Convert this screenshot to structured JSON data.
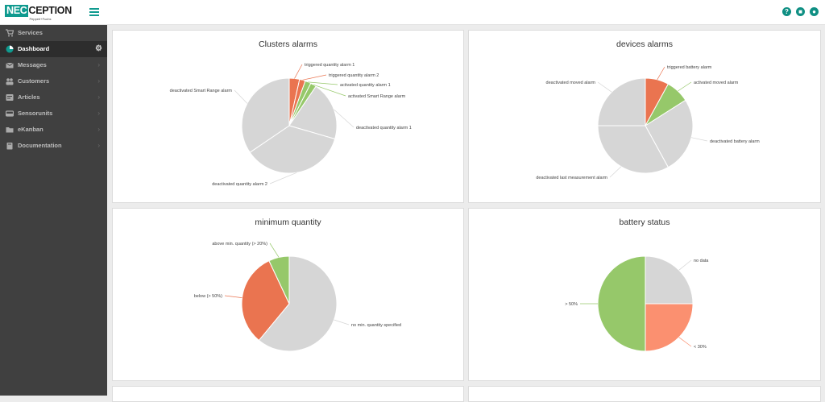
{
  "header": {
    "logo_prefix": "NEC",
    "logo_main": "CEPTION",
    "logo_sub": "Pepperl+Fuchs",
    "icons": [
      "help-icon",
      "chat-icon",
      "user-icon"
    ]
  },
  "sidebar": {
    "items": [
      {
        "label": "Services",
        "icon": "cart-icon"
      },
      {
        "label": "Dashboard",
        "icon": "dashboard-icon"
      },
      {
        "label": "Messages",
        "icon": "envelope-icon"
      },
      {
        "label": "Customers",
        "icon": "users-icon"
      },
      {
        "label": "Articles",
        "icon": "tag-icon"
      },
      {
        "label": "Sensorunits",
        "icon": "hdd-icon"
      },
      {
        "label": "eKanban",
        "icon": "folder-icon"
      },
      {
        "label": "Documentation",
        "icon": "book-icon"
      }
    ]
  },
  "colors": {
    "orange": "#ea7450",
    "green": "#96c86a",
    "grey": "#d6d6d6",
    "salmon": "#fb9070",
    "teal": "#0f9a8f"
  },
  "panels": {
    "clusters_alarms": {
      "title": "Clusters alarms"
    },
    "devices_alarms": {
      "title": "devices alarms"
    },
    "minimum_quantity": {
      "title": "minimum quantity"
    },
    "battery_status": {
      "title": "battery status"
    }
  },
  "chart_data": [
    {
      "type": "pie",
      "title": "Clusters alarms",
      "slices": [
        {
          "label": "triggered quantity alarm 1",
          "value": 3.5,
          "color": "#ea7450"
        },
        {
          "label": "triggered quantity alarm 2",
          "value": 2,
          "color": "#ea7450"
        },
        {
          "label": "activated quantity alarm 1",
          "value": 2,
          "color": "#96c86a"
        },
        {
          "label": "activated Smart Range alarm",
          "value": 2,
          "color": "#96c86a"
        },
        {
          "label": "deactivated quantity alarm 1",
          "value": 20,
          "color": "#d6d6d6"
        },
        {
          "label": "deactivated quantity alarm 2",
          "value": 36,
          "color": "#d6d6d6"
        },
        {
          "label": "deactivated Smart Range alarm",
          "value": 34.5,
          "color": "#d6d6d6"
        }
      ]
    },
    {
      "type": "pie",
      "title": "devices alarms",
      "slices": [
        {
          "label": "triggered battery alarm",
          "value": 8,
          "color": "#ea7450"
        },
        {
          "label": "activated moved alarm",
          "value": 8,
          "color": "#96c86a"
        },
        {
          "label": "deactivated battery alarm",
          "value": 26,
          "color": "#d6d6d6"
        },
        {
          "label": "deactivated last measurement alarm",
          "value": 33,
          "color": "#d6d6d6"
        },
        {
          "label": "deactivated moved alarm",
          "value": 25,
          "color": "#d6d6d6"
        }
      ]
    },
    {
      "type": "pie",
      "title": "minimum quantity",
      "slices": [
        {
          "label": "no min. quantity specified",
          "value": 61,
          "color": "#d6d6d6"
        },
        {
          "label": "below (> 50%)",
          "value": 32,
          "color": "#ea7450"
        },
        {
          "label": "above min. quantity (> 20%)",
          "value": 7,
          "color": "#96c86a"
        }
      ]
    },
    {
      "type": "pie",
      "title": "battery status",
      "slices": [
        {
          "label": "no data",
          "value": 25,
          "color": "#d6d6d6"
        },
        {
          "label": "< 30%",
          "value": 25,
          "color": "#fb9070"
        },
        {
          "label": "> 50%",
          "value": 50,
          "color": "#96c86a"
        }
      ]
    }
  ]
}
